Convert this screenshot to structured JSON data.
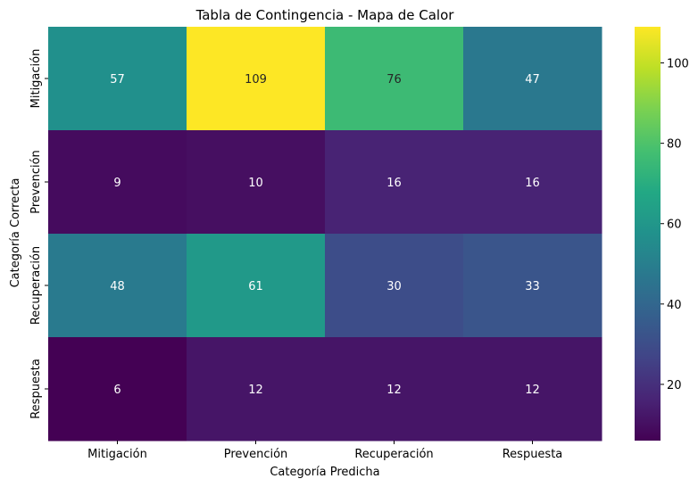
{
  "chart_data": {
    "type": "heatmap",
    "title": "Tabla de Contingencia - Mapa de Calor",
    "xlabel": "Categoría Predicha",
    "ylabel": "Categoría Correcta",
    "x_categories": [
      "Mitigación",
      "Prevención",
      "Recuperación",
      "Respuesta"
    ],
    "y_categories": [
      "Mitigación",
      "Prevención",
      "Recuperación",
      "Respuesta"
    ],
    "values": [
      [
        57,
        109,
        76,
        47
      ],
      [
        9,
        10,
        16,
        16
      ],
      [
        48,
        61,
        30,
        33
      ],
      [
        6,
        12,
        12,
        12
      ]
    ],
    "colormap": "viridis",
    "vmin": 6,
    "vmax": 109,
    "colorbar_ticks": [
      20,
      40,
      60,
      80,
      100
    ]
  }
}
